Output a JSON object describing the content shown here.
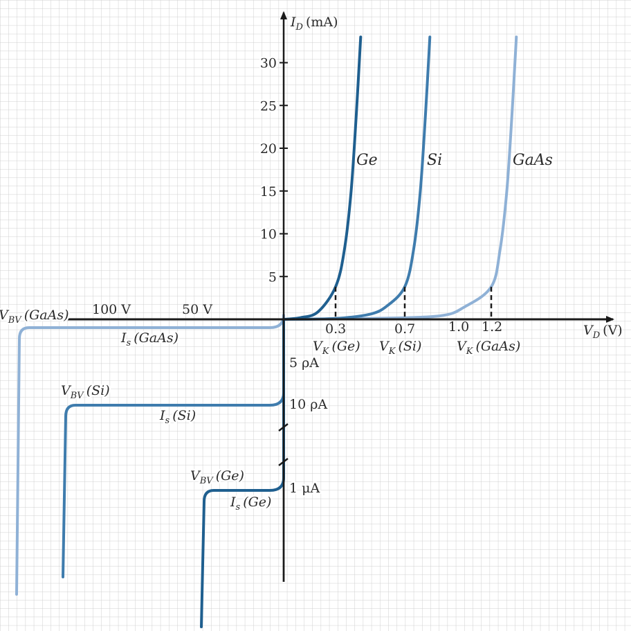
{
  "chart_data": {
    "type": "line",
    "title": "",
    "axes": {
      "y_label": "I",
      "y_label_sub": "D",
      "y_unit": "(mA)",
      "y_ticks": [
        5,
        10,
        15,
        20,
        25,
        30
      ],
      "x_label": "V",
      "x_label_sub": "D",
      "x_unit": "(V)",
      "x_ticks_forward": [
        "0.3",
        "0.7",
        "1.0",
        "1.2"
      ],
      "x_ticks_reverse": [
        "100 V",
        "50 V"
      ],
      "y_range_mA": [
        0,
        33
      ],
      "x_range_V": [
        0,
        1.5
      ]
    },
    "grid": true,
    "series": [
      {
        "name": "Ge",
        "color": "#1f5f8f",
        "knee_voltage": 0.3,
        "knee_label": "V",
        "knee_sub": "K",
        "knee_tag": "(Ge)",
        "forward": [
          [
            0,
            0
          ],
          [
            0.1,
            0.2
          ],
          [
            0.2,
            0.9
          ],
          [
            0.3,
            3.8
          ],
          [
            0.35,
            8
          ],
          [
            0.39,
            15
          ],
          [
            0.42,
            24
          ],
          [
            0.445,
            33
          ]
        ],
        "saturation_label_var": "I",
        "saturation_label_sub": "s",
        "saturation_label_tag": "(Ge)",
        "saturation_current": "1 μA",
        "breakdown_label_var": "V",
        "breakdown_label_sub": "BV",
        "breakdown_label_tag": "(Ge)"
      },
      {
        "name": "Si",
        "color": "#3f7cad",
        "knee_voltage": 0.7,
        "knee_label": "V",
        "knee_sub": "K",
        "knee_tag": "(Si)",
        "forward": [
          [
            0,
            0
          ],
          [
            0.3,
            0.1
          ],
          [
            0.5,
            0.6
          ],
          [
            0.6,
            1.6
          ],
          [
            0.7,
            3.8
          ],
          [
            0.75,
            8
          ],
          [
            0.79,
            15
          ],
          [
            0.82,
            24
          ],
          [
            0.845,
            33
          ]
        ],
        "saturation_label_var": "I",
        "saturation_label_sub": "s",
        "saturation_label_tag": "(Si)",
        "saturation_current": "10 ρA",
        "breakdown_label_var": "V",
        "breakdown_label_sub": "BV",
        "breakdown_label_tag": "(Si)"
      },
      {
        "name": "GaAs",
        "color": "#8fb1d6",
        "knee_voltage": 1.2,
        "knee_label": "V",
        "knee_sub": "K",
        "knee_tag": "(GaAs)",
        "forward": [
          [
            0,
            0
          ],
          [
            0.5,
            0.1
          ],
          [
            0.9,
            0.4
          ],
          [
            1.05,
            1.5
          ],
          [
            1.2,
            3.8
          ],
          [
            1.25,
            8
          ],
          [
            1.29,
            15
          ],
          [
            1.32,
            24
          ],
          [
            1.345,
            33
          ]
        ],
        "saturation_label_var": "I",
        "saturation_label_sub": "s",
        "saturation_label_tag": "(GaAs)",
        "saturation_current": "5 ρA",
        "breakdown_label_var": "V",
        "breakdown_label_sub": "BV",
        "breakdown_label_tag": "(GaAs)"
      }
    ]
  }
}
